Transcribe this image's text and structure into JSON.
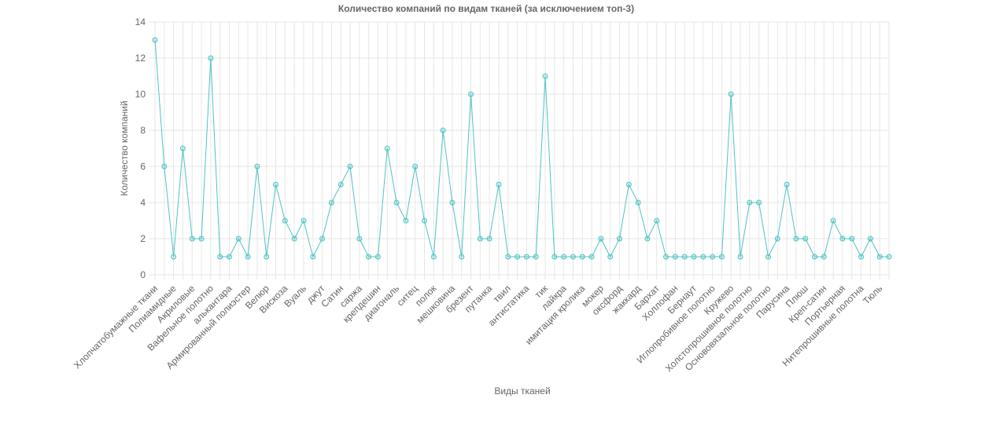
{
  "chart_data": {
    "type": "line",
    "title": "Количество компаний по видам тканей (за исключением топ-3)",
    "xlabel": "Виды тканей",
    "ylabel": "Количество компаний",
    "ylim": [
      0,
      14
    ],
    "yticks": [
      0,
      2,
      4,
      6,
      8,
      10,
      12,
      14
    ],
    "grid": true,
    "legend": "none",
    "colors": {
      "line": "#4fc3c3",
      "point_fill": "rgba(79,195,195,0.25)",
      "grid": "#e6e6e6",
      "text": "#666666"
    },
    "categories": [
      "Хлопчатобумажные ткани",
      "",
      "Полиамидные",
      "",
      "Акриловые",
      "",
      "Вафельное полотно",
      "",
      "алькантара",
      "",
      "Армированный полиэстер",
      "",
      "Велюр",
      "",
      "Вискоза",
      "",
      "Вуаль",
      "",
      "джут",
      "",
      "Сатин",
      "",
      "саржа",
      "",
      "крепдешин",
      "",
      "диагональ",
      "",
      "ситец",
      "",
      "полок",
      "",
      "мешковина",
      "",
      "брезент",
      "",
      "путанка",
      "",
      "твил",
      "",
      "антистатика",
      "",
      "тик",
      "",
      "лайкра",
      "",
      "имитация кролика",
      "",
      "мокер",
      "",
      "оксфорд",
      "",
      "жаккард",
      "",
      "Бархат",
      "",
      "Холлофан",
      "",
      "Бернаут",
      "",
      "Иглопробивное полотно",
      "",
      "Кружево",
      "",
      "Холстопрошивное полотно",
      "",
      "Основовязальное полотно",
      "",
      "Парусина",
      "",
      "Плюш",
      "",
      "Креп-сатин",
      "",
      "Портьерная",
      "",
      "Нитепрошивные полотна",
      "",
      "Тюль",
      ""
    ],
    "series": [
      {
        "values": [
          13,
          6,
          1,
          7,
          2,
          2,
          12,
          1,
          1,
          2,
          1,
          6,
          1,
          5,
          3,
          2,
          3,
          1,
          2,
          4,
          5,
          6,
          2,
          1,
          1,
          7,
          4,
          3,
          6,
          3,
          1,
          8,
          4,
          1,
          10,
          2,
          2,
          5,
          1,
          1,
          1,
          1,
          11,
          1,
          1,
          1,
          1,
          1,
          2,
          1,
          2,
          5,
          4,
          2,
          3,
          1,
          1,
          1,
          1,
          1,
          1,
          1,
          10,
          1,
          4,
          4,
          1,
          2,
          5,
          2,
          2,
          1,
          1,
          3,
          2,
          2,
          1,
          2,
          1,
          1
        ]
      }
    ]
  }
}
